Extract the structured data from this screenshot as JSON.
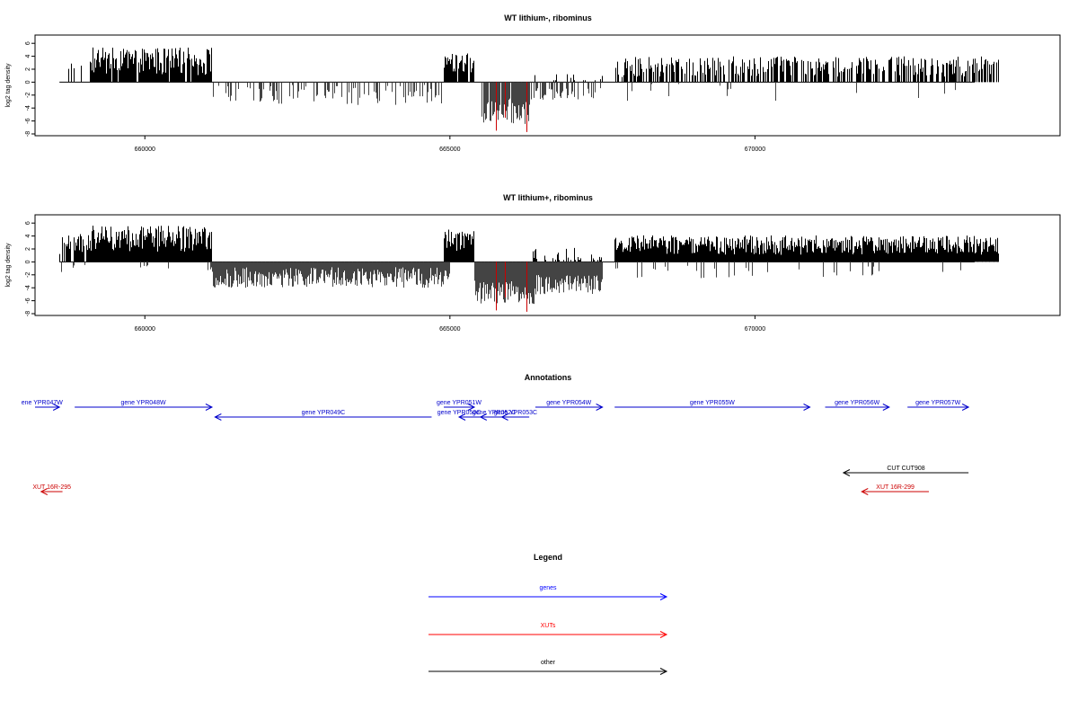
{
  "chart_data": [
    {
      "type": "bar",
      "title": "WT lithium-, ribominus",
      "xlabel": "",
      "ylabel": "log2 tag density",
      "xlim": [
        658200,
        675000
      ],
      "ylim": [
        -8,
        7
      ],
      "xticks": [
        660000,
        665000,
        670000
      ],
      "xtick_labels": [
        "660000",
        "665000",
        "670000"
      ],
      "yticks": [
        6,
        4,
        2,
        0,
        -2,
        -4,
        -6,
        -8
      ],
      "ytick_labels": [
        "6",
        "4",
        "2",
        "0",
        "-2",
        "-4",
        "-6",
        "-8"
      ],
      "highlight_bars": [
        {
          "x": 665750,
          "value": -7.5,
          "color": "#cc0000"
        },
        {
          "x": 665900,
          "value": -5.5,
          "color": "#cc0000"
        },
        {
          "x": 666250,
          "value": -7.7,
          "color": "#cc0000"
        }
      ],
      "profile": [
        {
          "x0": 658600,
          "x1": 659100,
          "pos_mean": 2.2,
          "pos_var": 1.0,
          "density": 0.12,
          "neg_mean": 0,
          "neg_var": 0,
          "neg_density": 0
        },
        {
          "x0": 659100,
          "x1": 661100,
          "pos_mean": 3.2,
          "pos_var": 2.2,
          "density": 0.9,
          "neg_mean": 0,
          "neg_var": 0,
          "neg_density": 0
        },
        {
          "x0": 661100,
          "x1": 665000,
          "pos_mean": 0,
          "pos_var": 0,
          "density": 0,
          "neg_mean": -2.0,
          "neg_var": 1.6,
          "neg_density": 0.25
        },
        {
          "x0": 664900,
          "x1": 665400,
          "pos_mean": 3.0,
          "pos_var": 1.5,
          "density": 0.9,
          "neg_mean": 0,
          "neg_var": 0,
          "neg_density": 0
        },
        {
          "x0": 665500,
          "x1": 666300,
          "pos_mean": 0,
          "pos_var": 0,
          "density": 0,
          "neg_mean": -4.5,
          "neg_var": 2.0,
          "neg_density": 0.95
        },
        {
          "x0": 666300,
          "x1": 667500,
          "pos_mean": 0.6,
          "pos_var": 1.0,
          "density": 0.12,
          "neg_mean": -1.8,
          "neg_var": 1.0,
          "neg_density": 0.35
        },
        {
          "x0": 667700,
          "x1": 674000,
          "pos_mean": 2.4,
          "pos_var": 1.6,
          "density": 0.55,
          "neg_mean": -1.5,
          "neg_var": 1.5,
          "neg_density": 0.02
        }
      ]
    },
    {
      "type": "bar",
      "title": "WT lithium+, ribominus",
      "xlabel": "",
      "ylabel": "log2 tag density",
      "xlim": [
        658200,
        675000
      ],
      "ylim": [
        -8,
        7
      ],
      "xticks": [
        660000,
        665000,
        670000
      ],
      "xtick_labels": [
        "660000",
        "665000",
        "670000"
      ],
      "yticks": [
        6,
        4,
        2,
        0,
        -2,
        -4,
        -6,
        -8
      ],
      "ytick_labels": [
        "6",
        "4",
        "2",
        "0",
        "-2",
        "-4",
        "-6",
        "-8"
      ],
      "highlight_bars": [
        {
          "x": 665750,
          "value": -7.5,
          "color": "#cc0000"
        },
        {
          "x": 665900,
          "value": -5.5,
          "color": "#cc0000"
        },
        {
          "x": 666250,
          "value": -7.7,
          "color": "#cc0000"
        }
      ],
      "profile": [
        {
          "x0": 658600,
          "x1": 659100,
          "pos_mean": 2.8,
          "pos_var": 1.6,
          "density": 0.8,
          "neg_mean": -1.0,
          "neg_var": 0.6,
          "neg_density": 0.15
        },
        {
          "x0": 659100,
          "x1": 661100,
          "pos_mean": 3.6,
          "pos_var": 2.0,
          "density": 1.0,
          "neg_mean": -1.0,
          "neg_var": 0.5,
          "neg_density": 0.03
        },
        {
          "x0": 661100,
          "x1": 665000,
          "pos_mean": 0,
          "pos_var": 0,
          "density": 0,
          "neg_mean": -2.4,
          "neg_var": 1.6,
          "neg_density": 1.0
        },
        {
          "x0": 664900,
          "x1": 665400,
          "pos_mean": 3.2,
          "pos_var": 1.8,
          "density": 1.0,
          "neg_mean": 0,
          "neg_var": 0,
          "neg_density": 0
        },
        {
          "x0": 665400,
          "x1": 666400,
          "pos_mean": 0,
          "pos_var": 0,
          "density": 0,
          "neg_mean": -4.6,
          "neg_var": 2.0,
          "neg_density": 1.0
        },
        {
          "x0": 666300,
          "x1": 667500,
          "pos_mean": 1.0,
          "pos_var": 1.2,
          "density": 0.3,
          "neg_mean": -3.5,
          "neg_var": 1.5,
          "neg_density": 1.0
        },
        {
          "x0": 667700,
          "x1": 674000,
          "pos_mean": 2.6,
          "pos_var": 1.5,
          "density": 1.0,
          "neg_mean": -1.5,
          "neg_var": 1.0,
          "neg_density": 0.05
        }
      ]
    }
  ],
  "annotations": {
    "title": "Annotations",
    "features": [
      {
        "label": "ene YPR047W",
        "color": "#0000cc",
        "x0": 658200,
        "x1": 658600,
        "dir": "+",
        "lx0": 658200,
        "lx1": 658430,
        "row": 0
      },
      {
        "label": "gene YPR048W",
        "color": "#0000cc",
        "x0": 658850,
        "x1": 661100,
        "dir": "+",
        "lx0": 658850,
        "lx1": 661100,
        "row": 0
      },
      {
        "label": "gene YPR049C",
        "color": "#0000cc",
        "x0": 661150,
        "x1": 664700,
        "dir": "-",
        "lx0": 661150,
        "lx1": 664700,
        "row": 1
      },
      {
        "label": "gene YPR051W",
        "color": "#0000cc",
        "x0": 664900,
        "x1": 665400,
        "dir": "+",
        "lx0": 664900,
        "lx1": 665400,
        "row": 0
      },
      {
        "label": "gene YPR050C",
        "color": "#0000cc",
        "x0": 665150,
        "x1": 665600,
        "dir": "-",
        "lx0": 664900,
        "lx1": 665400,
        "row": 1
      },
      {
        "label": "gene YPR052C",
        "color": "#0000cc",
        "x0": 665500,
        "x1": 665950,
        "dir": "-",
        "lx0": 665500,
        "lx1": 665950,
        "row": 1
      },
      {
        "label": "gene YPR053C",
        "color": "#0000cc",
        "x0": 665850,
        "x1": 666300,
        "dir": "-",
        "lx0": 665850,
        "lx1": 666300,
        "row": 1
      },
      {
        "label": "gene YPR054W",
        "color": "#0000cc",
        "x0": 666400,
        "x1": 667500,
        "dir": "+",
        "lx0": 666400,
        "lx1": 667500,
        "row": 0
      },
      {
        "label": "gene YPR055W",
        "color": "#0000cc",
        "x0": 667700,
        "x1": 670900,
        "dir": "+",
        "lx0": 667700,
        "lx1": 670900,
        "row": 0
      },
      {
        "label": "gene YPR056W",
        "color": "#0000cc",
        "x0": 671150,
        "x1": 672200,
        "dir": "+",
        "lx0": 671150,
        "lx1": 672200,
        "row": 0
      },
      {
        "label": "gene YPR057W",
        "color": "#0000cc",
        "x0": 672500,
        "x1": 673500,
        "dir": "+",
        "lx0": 672500,
        "lx1": 673500,
        "row": 0
      },
      {
        "label": "CUT CUT908",
        "color": "#000000",
        "x0": 671450,
        "x1": 673500,
        "dir": "-",
        "lx0": 671450,
        "lx1": 673500,
        "row": 2
      },
      {
        "label": "XUT 16R-295",
        "color": "#cc0000",
        "x0": 658300,
        "x1": 658650,
        "dir": "-",
        "lx0": 658300,
        "lx1": 658650,
        "row": 3
      },
      {
        "label": "XUT 16R-299",
        "color": "#cc0000",
        "x0": 671750,
        "x1": 672850,
        "dir": "-",
        "lx0": 671750,
        "lx1": 672850,
        "row": 3
      }
    ]
  },
  "legend": {
    "title": "Legend",
    "items": [
      {
        "label": "genes",
        "color": "#0000ff"
      },
      {
        "label": "XUTs",
        "color": "#ff0000"
      },
      {
        "label": "other",
        "color": "#000000"
      }
    ]
  }
}
